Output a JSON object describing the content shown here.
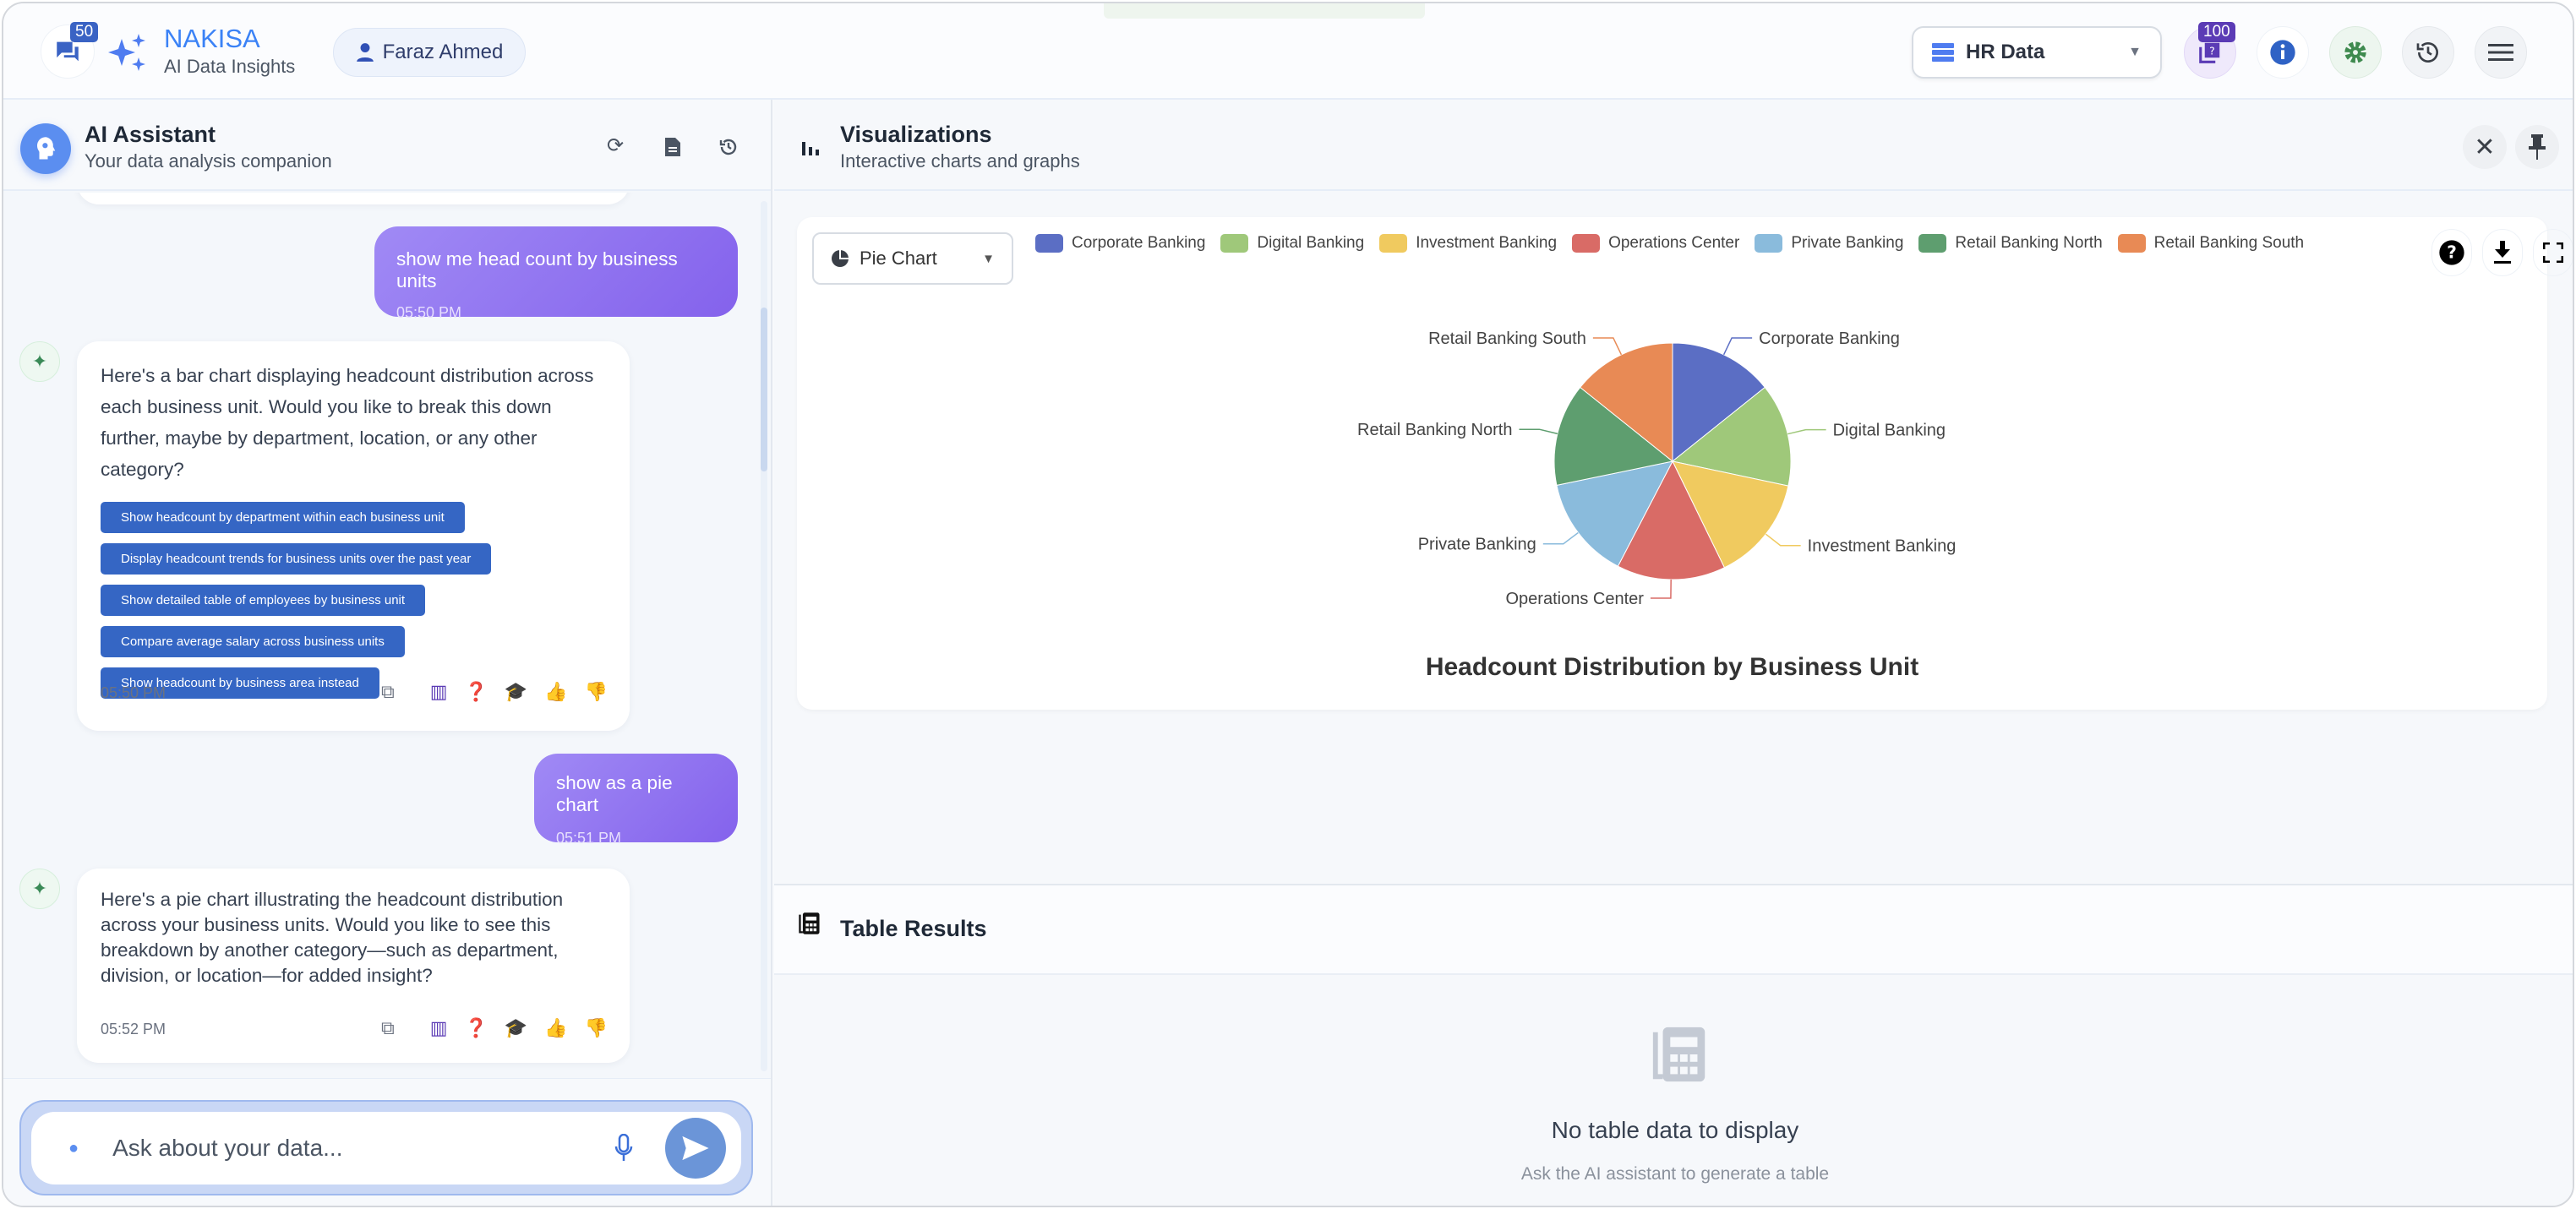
{
  "header": {
    "app_name": "NAKISA",
    "app_subtitle": "AI Data Insights",
    "chat_badge": "50",
    "user_name": "Faraz Ahmed",
    "datasource": "HR Data",
    "questions_badge": "100",
    "accent": "#3b82f6"
  },
  "assistant": {
    "title": "AI Assistant",
    "subtitle": "Your data analysis companion",
    "messages": [
      {
        "role": "user",
        "text": "show me head count by business units",
        "time": "05:50 PM"
      },
      {
        "role": "ai",
        "text": "Here's a bar chart displaying headcount distribution across each business unit. Would you like to break this down further, maybe by department, location, or any other category?",
        "time": "05:50 PM",
        "suggestions": [
          "Show headcount by department within each business unit",
          "Display headcount trends for business units over the past year",
          "Show detailed table of employees by business unit",
          "Compare average salary across business units",
          "Show headcount by business area instead"
        ]
      },
      {
        "role": "user",
        "text": "show as a pie chart",
        "time": "05:51 PM"
      },
      {
        "role": "ai",
        "text": "Here's a pie chart illustrating the headcount distribution across your business units. Would you like to see this breakdown by another category—such as department, division, or location—for added insight?",
        "time": "05:52 PM"
      }
    ],
    "input_placeholder": "Ask about your data..."
  },
  "visualizations": {
    "title": "Visualizations",
    "subtitle": "Interactive charts and graphs",
    "chart_type": "Pie Chart"
  },
  "chart_data": {
    "type": "pie",
    "title": "Headcount Distribution by Business Unit",
    "categories": [
      "Corporate Banking",
      "Digital Banking",
      "Investment Banking",
      "Operations Center",
      "Private Banking",
      "Retail Banking North",
      "Retail Banking South"
    ],
    "values": [
      14.25,
      14.08,
      14.44,
      14.86,
      14.11,
      14.0,
      14.25
    ],
    "value_unit": "estimated share %",
    "colors": [
      "#5b6ec4",
      "#9fc87a",
      "#f0ca5f",
      "#d96b66",
      "#8abbdc",
      "#5e9e6f",
      "#e88a55"
    ],
    "legend_placement": "top"
  },
  "table": {
    "title": "Table Results",
    "empty_title": "No table data to display",
    "empty_sub": "Ask the AI assistant to generate a table"
  }
}
